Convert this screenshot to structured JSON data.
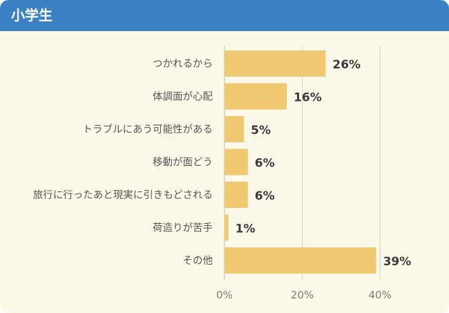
{
  "header": {
    "title": "小学生"
  },
  "chart_data": {
    "type": "bar",
    "orientation": "horizontal",
    "categories": [
      "つかれるから",
      "体調面が心配",
      "トラブルにあう可能性がある",
      "移動が面どう",
      "旅行に行ったあと現実に引きもどされる",
      "荷造りが苦手",
      "その他"
    ],
    "values": [
      26,
      16,
      5,
      6,
      6,
      1,
      39
    ],
    "value_labels": [
      "26%",
      "16%",
      "5%",
      "6%",
      "6%",
      "1%",
      "39%"
    ],
    "xticks": [
      "0%",
      "20%",
      "40%"
    ],
    "xtick_values": [
      0,
      20,
      40
    ],
    "xlim": [
      0,
      41
    ],
    "grid": true,
    "bar_color": "#f0c972",
    "grid_color": "#d9d6c7"
  }
}
